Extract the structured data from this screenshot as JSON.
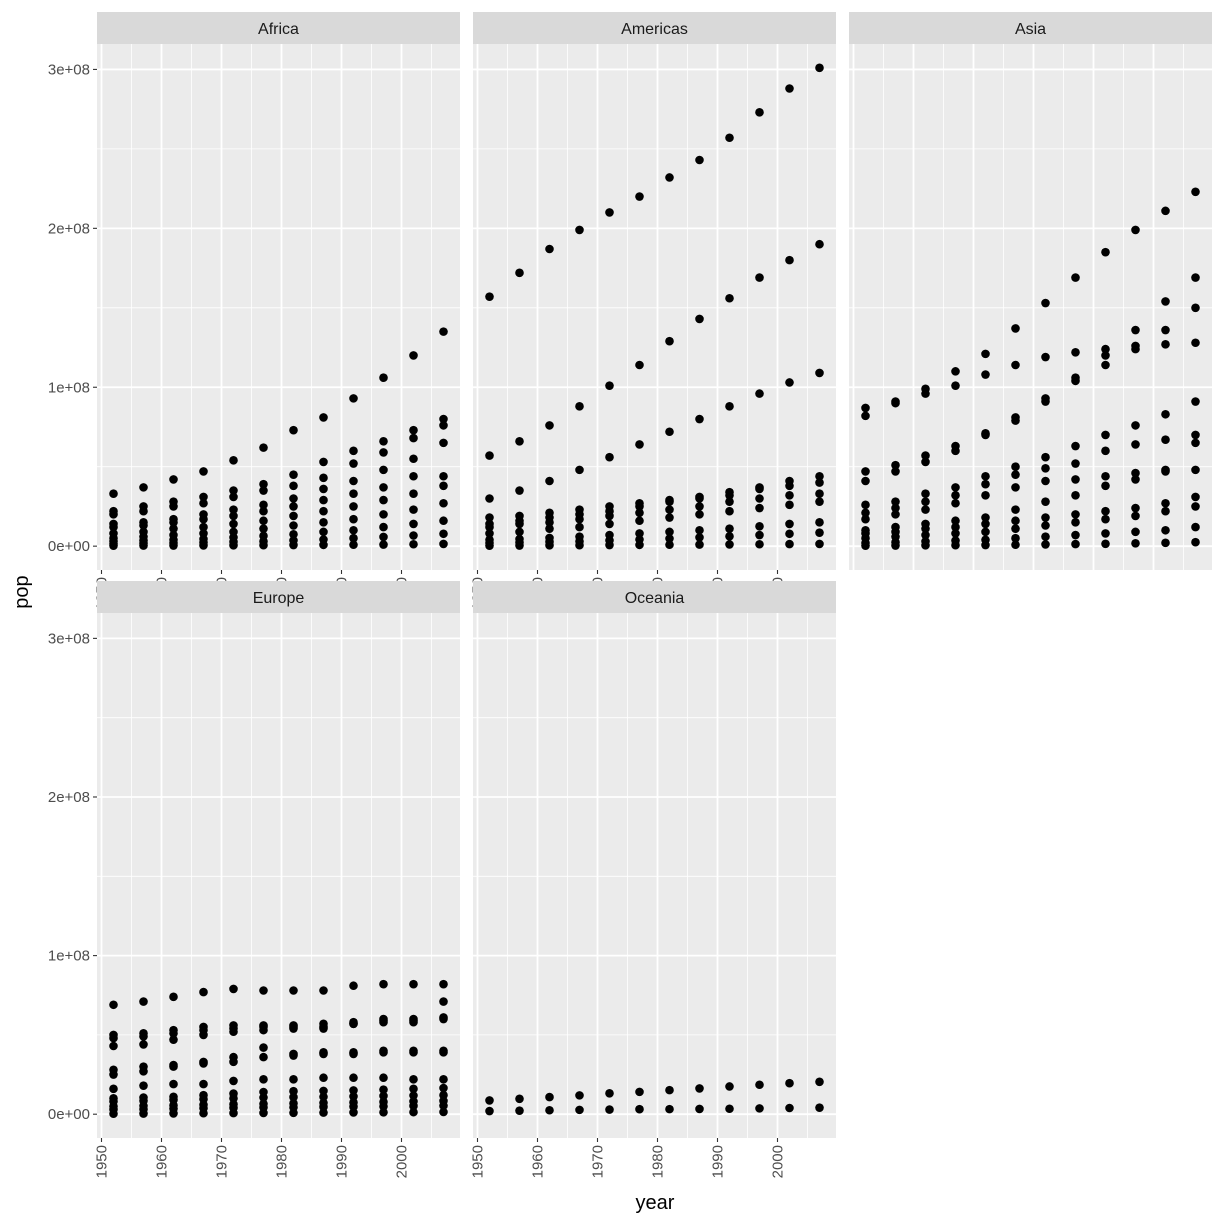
{
  "chart_data": {
    "type": "scatter",
    "xlabel": "year",
    "ylabel": "pop",
    "xlim": [
      1949.25,
      2009.75
    ],
    "ylim": [
      -15000000,
      316000000
    ],
    "x_ticks": [
      1950,
      1960,
      1970,
      1980,
      1990,
      2000
    ],
    "x_tick_labels": [
      "1950",
      "1960",
      "1970",
      "1980",
      "1990",
      "2000"
    ],
    "y_ticks": [
      0,
      100000000,
      200000000,
      300000000
    ],
    "y_tick_labels": [
      "0e+00",
      "1e+08",
      "2e+08",
      "3e+08"
    ],
    "years": [
      1952,
      1957,
      1962,
      1967,
      1972,
      1977,
      1982,
      1987,
      1992,
      1997,
      2002,
      2007
    ],
    "grid": true,
    "legend": "none",
    "colors": {
      "panel_bg": "#ebebeb",
      "strip_bg": "#d9d9d9",
      "grid": "#ffffff",
      "point": "#000000"
    },
    "panels": [
      {
        "name": "Africa",
        "series": [
          {
            "values": [
              33000000,
              37000000,
              42000000,
              47000000,
              54000000,
              62000000,
              73000000,
              81000000,
              93000000,
              106000000,
              120000000,
              135000000
            ]
          },
          {
            "values": [
              22000000,
              25000000,
              28000000,
              31000000,
              35000000,
              39000000,
              45000000,
              53000000,
              60000000,
              66000000,
              73000000,
              80000000
            ]
          },
          {
            "values": [
              20000000,
              22000000,
              25000000,
              27000000,
              31000000,
              35000000,
              38000000,
              43000000,
              52000000,
              59000000,
              68000000,
              76000000
            ]
          },
          {
            "values": [
              14000000,
              15000000,
              17000000,
              20000000,
              23000000,
              26000000,
              30000000,
              36000000,
              41000000,
              48000000,
              55000000,
              65000000
            ]
          },
          {
            "values": [
              12000000,
              13000000,
              15000000,
              17000000,
              19000000,
              22000000,
              25000000,
              29000000,
              33000000,
              37000000,
              44000000,
              44000000
            ]
          },
          {
            "values": [
              8000000,
              9000000,
              11000000,
              12000000,
              14000000,
              16000000,
              19000000,
              22000000,
              25000000,
              29000000,
              33000000,
              38000000
            ]
          },
          {
            "values": [
              5000000,
              6000000,
              7000000,
              8000000,
              9000000,
              11000000,
              13000000,
              15000000,
              17000000,
              20000000,
              23000000,
              27000000
            ]
          },
          {
            "values": [
              3000000,
              3500000,
              4000000,
              4500000,
              5500000,
              6500000,
              7500000,
              9000000,
              10000000,
              12000000,
              14000000,
              16000000
            ]
          },
          {
            "values": [
              1500000,
              1700000,
              2000000,
              2300000,
              2700000,
              3100000,
              3600000,
              4200000,
              5000000,
              5800000,
              6700000,
              7800000
            ]
          },
          {
            "values": [
              300000,
              350000,
              400000,
              450000,
              500000,
              600000,
              700000,
              800000,
              900000,
              1000000,
              1200000,
              1400000
            ]
          }
        ]
      },
      {
        "name": "Americas",
        "series": [
          {
            "values": [
              157000000,
              172000000,
              187000000,
              199000000,
              210000000,
              220000000,
              232000000,
              243000000,
              257000000,
              273000000,
              288000000,
              301000000
            ]
          },
          {
            "values": [
              57000000,
              66000000,
              76000000,
              88000000,
              101000000,
              114000000,
              129000000,
              143000000,
              156000000,
              169000000,
              180000000,
              190000000
            ]
          },
          {
            "values": [
              30000000,
              35000000,
              41000000,
              48000000,
              56000000,
              64000000,
              72000000,
              80000000,
              88000000,
              96000000,
              103000000,
              109000000
            ]
          },
          {
            "values": [
              18000000,
              19000000,
              21000000,
              23000000,
              25000000,
              27000000,
              29000000,
              31000000,
              34000000,
              37000000,
              41000000,
              44000000
            ]
          },
          {
            "values": [
              14000000,
              16000000,
              18000000,
              20000000,
              22000000,
              25000000,
              28000000,
              30000000,
              32000000,
              36000000,
              38000000,
              40000000
            ]
          },
          {
            "values": [
              12000000,
              14000000,
              15000000,
              17000000,
              19000000,
              21000000,
              23000000,
              25000000,
              28000000,
              30000000,
              32000000,
              33000000
            ]
          },
          {
            "values": [
              8000000,
              9000000,
              11000000,
              12000000,
              14000000,
              16000000,
              18000000,
              20000000,
              22000000,
              24000000,
              26000000,
              28000000
            ]
          },
          {
            "values": [
              4000000,
              4500000,
              5200000,
              6000000,
              7000000,
              8000000,
              9000000,
              10000000,
              11000000,
              12500000,
              14000000,
              15000000
            ]
          },
          {
            "values": [
              2000000,
              2300000,
              2700000,
              3100000,
              3600000,
              4200000,
              4800000,
              5500000,
              6200000,
              7000000,
              7800000,
              8500000
            ]
          },
          {
            "values": [
              300000,
              400000,
              500000,
              600000,
              700000,
              800000,
              900000,
              1000000,
              1100000,
              1200000,
              1300000,
              1400000
            ]
          }
        ]
      },
      {
        "name": "Asia",
        "series": [
          {
            "values": [
              87000000,
              91000000,
              99000000,
              110000000,
              121000000,
              137000000,
              153000000,
              169000000,
              185000000,
              199000000,
              211000000,
              223000000
            ]
          },
          {
            "values": [
              82000000,
              90000000,
              96000000,
              101000000,
              108000000,
              114000000,
              119000000,
              122000000,
              124000000,
              136000000,
              154000000,
              169000000
            ]
          },
          {
            "values": [
              47000000,
              51000000,
              57000000,
              63000000,
              71000000,
              81000000,
              93000000,
              106000000,
              120000000,
              126000000,
              136000000,
              150000000
            ]
          },
          {
            "values": [
              41000000,
              47000000,
              53000000,
              60000000,
              70000000,
              79000000,
              91000000,
              104000000,
              114000000,
              124000000,
              127000000,
              128000000
            ]
          },
          {
            "values": [
              26000000,
              28000000,
              33000000,
              37000000,
              44000000,
              50000000,
              56000000,
              63000000,
              70000000,
              76000000,
              83000000,
              91000000
            ]
          },
          {
            "values": [
              21000000,
              24000000,
              28000000,
              32000000,
              39000000,
              45000000,
              49000000,
              52000000,
              60000000,
              64000000,
              67000000,
              70000000
            ]
          },
          {
            "values": [
              17000000,
              20000000,
              23000000,
              27000000,
              32000000,
              37000000,
              41000000,
              42000000,
              44000000,
              46000000,
              48000000,
              65000000
            ]
          },
          {
            "values": [
              10000000,
              12000000,
              14000000,
              16000000,
              18000000,
              23000000,
              28000000,
              32000000,
              38000000,
              42000000,
              47000000,
              48000000
            ]
          },
          {
            "values": [
              8000000,
              9000000,
              11000000,
              12000000,
              14000000,
              16000000,
              18000000,
              20000000,
              22000000,
              24000000,
              27000000,
              31000000
            ]
          },
          {
            "values": [
              5000000,
              6000000,
              7000000,
              8000000,
              9000000,
              11000000,
              13000000,
              15000000,
              17000000,
              19000000,
              22000000,
              25000000
            ]
          },
          {
            "values": [
              2000000,
              2500000,
              3000000,
              3500000,
              4000000,
              5000000,
              6000000,
              7000000,
              8000000,
              9000000,
              10000000,
              12000000
            ]
          },
          {
            "values": [
              300000,
              400000,
              500000,
              600000,
              700000,
              900000,
              1100000,
              1300000,
              1500000,
              1800000,
              2100000,
              2500000
            ]
          }
        ]
      },
      {
        "name": "Europe",
        "series": [
          {
            "values": [
              69000000,
              71000000,
              74000000,
              77000000,
              79000000,
              78000000,
              78000000,
              78000000,
              81000000,
              82000000,
              82000000,
              82000000
            ]
          },
          {
            "values": [
              50000000,
              51000000,
              53000000,
              55000000,
              56000000,
              56000000,
              56000000,
              57000000,
              58000000,
              59000000,
              60000000,
              61000000
            ]
          },
          {
            "values": [
              48000000,
              49000000,
              51000000,
              53000000,
              54000000,
              55000000,
              55000000,
              55000000,
              57000000,
              58000000,
              59000000,
              60000000
            ]
          },
          {
            "values": [
              43000000,
              44000000,
              47000000,
              50000000,
              52000000,
              53000000,
              54000000,
              54000000,
              57000000,
              60000000,
              58000000,
              71000000
            ]
          },
          {
            "values": [
              28000000,
              30000000,
              31000000,
              33000000,
              36000000,
              42000000,
              38000000,
              39000000,
              39000000,
              40000000,
              40000000,
              40000000
            ]
          },
          {
            "values": [
              25000000,
              27000000,
              30000000,
              32000000,
              33000000,
              36000000,
              37000000,
              38000000,
              38000000,
              39000000,
              39000000,
              39000000
            ]
          },
          {
            "values": [
              16000000,
              18000000,
              19000000,
              19000000,
              21000000,
              22000000,
              22000000,
              23000000,
              23000000,
              23000000,
              22000000,
              22000000
            ]
          },
          {
            "values": [
              10000000,
              10500000,
              11000000,
              12000000,
              13000000,
              14000000,
              14500000,
              14700000,
              15000000,
              15500000,
              16000000,
              16500000
            ]
          },
          {
            "values": [
              8000000,
              8500000,
              9000000,
              9500000,
              10000000,
              10500000,
              10800000,
              11000000,
              11200000,
              11500000,
              11800000,
              12000000
            ]
          },
          {
            "values": [
              5000000,
              5300000,
              5600000,
              6000000,
              6300000,
              6600000,
              6900000,
              7200000,
              7500000,
              7800000,
              8100000,
              8400000
            ]
          },
          {
            "values": [
              3000000,
              3200000,
              3500000,
              3800000,
              4000000,
              4200000,
              4400000,
              4600000,
              4800000,
              5000000,
              5200000,
              5400000
            ]
          },
          {
            "values": [
              300000,
              400000,
              500000,
              600000,
              700000,
              800000,
              900000,
              1000000,
              1100000,
              1200000,
              1300000,
              1400000
            ]
          }
        ]
      },
      {
        "name": "Oceania",
        "series": [
          {
            "values": [
              8691212,
              9712569,
              10794968,
              11872264,
              13177000,
              14074100,
              15184200,
              16257249,
              17481977,
              18565243,
              19546792,
              20434176
            ]
          },
          {
            "values": [
              1994794,
              2229407,
              2488550,
              2728150,
              2929100,
              3164900,
              3210650,
              3317166,
              3437674,
              3676187,
              3908037,
              4115771
            ]
          }
        ]
      }
    ]
  }
}
